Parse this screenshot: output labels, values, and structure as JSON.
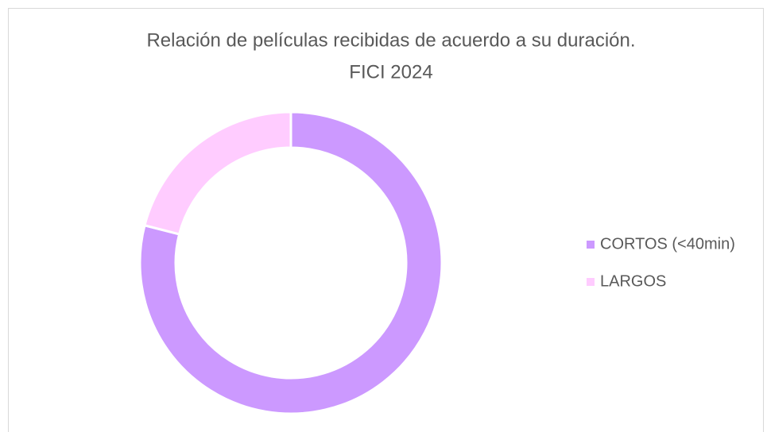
{
  "chart_data": {
    "type": "donut",
    "title": [
      "Relación de películas recibidas de acuerdo a su duración.",
      "FICI 2024"
    ],
    "categories": [
      "CORTOS (<40min)",
      "LARGOS"
    ],
    "values": [
      79,
      21
    ],
    "colors": [
      "#cc99ff",
      "#ffccff"
    ],
    "legend": "right"
  }
}
